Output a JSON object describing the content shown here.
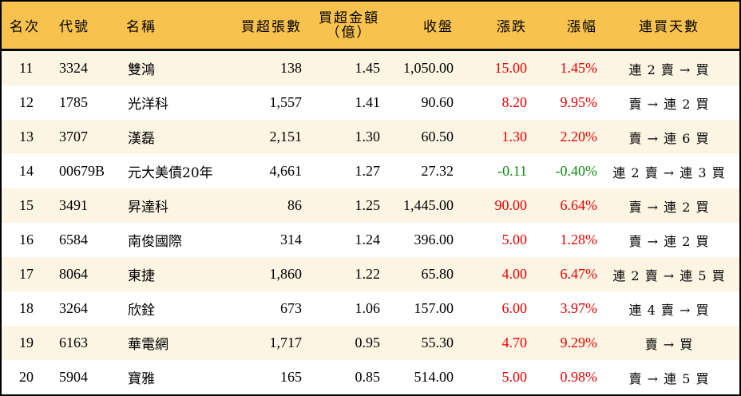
{
  "table": {
    "headers": {
      "rank": "名次",
      "code": "代號",
      "name": "名稱",
      "net_buy_lots": "買超張數",
      "net_buy_amount_line1": "買超金額",
      "net_buy_amount_line2": "（億）",
      "close": "收盤",
      "change": "漲跌",
      "change_pct": "漲幅",
      "streak": "連買天數"
    },
    "colors": {
      "header_bg": "#f8c24f",
      "alt_row_bg": "#fdf5e3",
      "up": "#ee0000",
      "down": "#118811"
    },
    "rows": [
      {
        "rank": "11",
        "code": "3324",
        "name": "雙鴻",
        "net_buy_lots": "138",
        "net_buy_amount": "1.45",
        "close": "1,050.00",
        "change": "15.00",
        "change_pct": "1.45%",
        "direction": "up",
        "streak": "連 2 賣 → 買"
      },
      {
        "rank": "12",
        "code": "1785",
        "name": "光洋科",
        "net_buy_lots": "1,557",
        "net_buy_amount": "1.41",
        "close": "90.60",
        "change": "8.20",
        "change_pct": "9.95%",
        "direction": "up",
        "streak": "賣 → 連 2 買"
      },
      {
        "rank": "13",
        "code": "3707",
        "name": "漢磊",
        "net_buy_lots": "2,151",
        "net_buy_amount": "1.30",
        "close": "60.50",
        "change": "1.30",
        "change_pct": "2.20%",
        "direction": "up",
        "streak": "賣 → 連 6 買"
      },
      {
        "rank": "14",
        "code": "00679B",
        "name": "元大美債20年",
        "net_buy_lots": "4,661",
        "net_buy_amount": "1.27",
        "close": "27.32",
        "change": "-0.11",
        "change_pct": "-0.40%",
        "direction": "down",
        "streak": "連 2 賣 → 連 3 買"
      },
      {
        "rank": "15",
        "code": "3491",
        "name": "昇達科",
        "net_buy_lots": "86",
        "net_buy_amount": "1.25",
        "close": "1,445.00",
        "change": "90.00",
        "change_pct": "6.64%",
        "direction": "up",
        "streak": "賣 → 連 2 買"
      },
      {
        "rank": "16",
        "code": "6584",
        "name": "南俊國際",
        "net_buy_lots": "314",
        "net_buy_amount": "1.24",
        "close": "396.00",
        "change": "5.00",
        "change_pct": "1.28%",
        "direction": "up",
        "streak": "賣 → 連 2 買"
      },
      {
        "rank": "17",
        "code": "8064",
        "name": "東捷",
        "net_buy_lots": "1,860",
        "net_buy_amount": "1.22",
        "close": "65.80",
        "change": "4.00",
        "change_pct": "6.47%",
        "direction": "up",
        "streak": "連 2 賣 → 連 5 買"
      },
      {
        "rank": "18",
        "code": "3264",
        "name": "欣銓",
        "net_buy_lots": "673",
        "net_buy_amount": "1.06",
        "close": "157.00",
        "change": "6.00",
        "change_pct": "3.97%",
        "direction": "up",
        "streak": "連 4 賣 → 買"
      },
      {
        "rank": "19",
        "code": "6163",
        "name": "華電網",
        "net_buy_lots": "1,717",
        "net_buy_amount": "0.95",
        "close": "55.30",
        "change": "4.70",
        "change_pct": "9.29%",
        "direction": "up",
        "streak": "賣 → 買"
      },
      {
        "rank": "20",
        "code": "5904",
        "name": "寶雅",
        "net_buy_lots": "165",
        "net_buy_amount": "0.85",
        "close": "514.00",
        "change": "5.00",
        "change_pct": "0.98%",
        "direction": "up",
        "streak": "賣 → 連 5 買"
      }
    ]
  }
}
